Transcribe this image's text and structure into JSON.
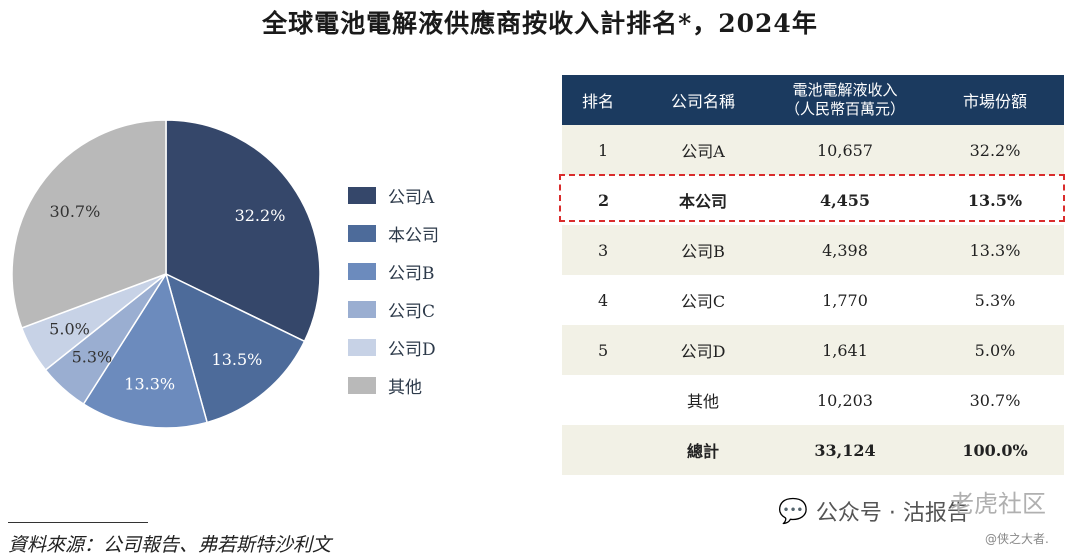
{
  "title": "全球電池電解液供應商按收入計排名*，2024年",
  "chart_data": {
    "type": "pie",
    "categories": [
      "公司A",
      "本公司",
      "公司B",
      "公司C",
      "公司D",
      "其他"
    ],
    "values": [
      32.2,
      13.5,
      13.3,
      5.3,
      5.0,
      30.7
    ],
    "labels": [
      "32.2%",
      "13.5%",
      "13.3%",
      "5.3%",
      "5.0%",
      "30.7%"
    ],
    "colors": [
      "#35476a",
      "#4d6b9a",
      "#6c8bbd",
      "#9aaed1",
      "#c7d2e6",
      "#b9b9b9"
    ],
    "legend_position": "right"
  },
  "table": {
    "headers": [
      "排名",
      "公司名稱",
      "電池電解液收入",
      "（人民幣百萬元）",
      "市場份額"
    ],
    "rows": [
      {
        "rank": "1",
        "name": "公司A",
        "revenue": "10,657",
        "share": "32.2%"
      },
      {
        "rank": "2",
        "name": "本公司",
        "revenue": "4,455",
        "share": "13.5%"
      },
      {
        "rank": "3",
        "name": "公司B",
        "revenue": "4,398",
        "share": "13.3%"
      },
      {
        "rank": "4",
        "name": "公司C",
        "revenue": "1,770",
        "share": "5.3%"
      },
      {
        "rank": "5",
        "name": "公司D",
        "revenue": "1,641",
        "share": "5.0%"
      },
      {
        "rank": "",
        "name": "其他",
        "revenue": "10,203",
        "share": "30.7%"
      },
      {
        "rank": "",
        "name": "總計",
        "revenue": "33,124",
        "share": "100.0%"
      }
    ]
  },
  "source": "資料來源：公司報告、弗若斯特沙利文",
  "watermark": {
    "text": "公众号 · 沽报告",
    "icon": "wechat-icon",
    "faint": "老虎社区",
    "handle": "@侠之大者."
  }
}
